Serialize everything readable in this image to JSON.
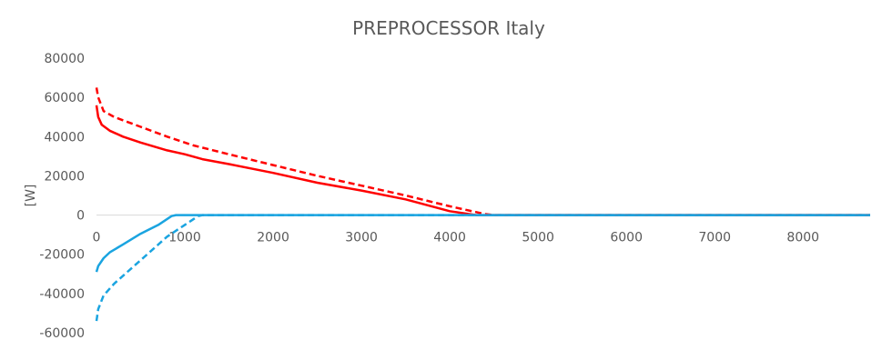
{
  "chart_data": {
    "type": "line",
    "title": "PREPROCESSOR Italy",
    "xlabel": "",
    "ylabel": "[W]",
    "xlim": [
      0,
      8760
    ],
    "ylim": [
      -60000,
      80000
    ],
    "x_ticks": [
      0,
      1000,
      2000,
      3000,
      4000,
      5000,
      6000,
      7000,
      8000
    ],
    "y_ticks": [
      80000,
      60000,
      40000,
      20000,
      0,
      -20000,
      -40000,
      -60000
    ],
    "grid": false,
    "legend": "none",
    "series": [
      {
        "color": "#ff0000",
        "dash": "solid",
        "points": [
          [
            0,
            56000
          ],
          [
            20,
            50000
          ],
          [
            60,
            46000
          ],
          [
            150,
            43000
          ],
          [
            300,
            40000
          ],
          [
            500,
            37000
          ],
          [
            800,
            33000
          ],
          [
            1000,
            31000
          ],
          [
            1200,
            28500
          ],
          [
            1500,
            26000
          ],
          [
            2000,
            21500
          ],
          [
            2500,
            16500
          ],
          [
            3000,
            12500
          ],
          [
            3500,
            8000
          ],
          [
            4000,
            2000
          ],
          [
            4300,
            0
          ],
          [
            8760,
            0
          ]
        ]
      },
      {
        "color": "#ff0000",
        "dash": "dashed",
        "points": [
          [
            0,
            65000
          ],
          [
            20,
            60000
          ],
          [
            80,
            53000
          ],
          [
            200,
            50000
          ],
          [
            500,
            45000
          ],
          [
            800,
            40000
          ],
          [
            1100,
            35500
          ],
          [
            1500,
            31000
          ],
          [
            2000,
            25500
          ],
          [
            2500,
            20000
          ],
          [
            3000,
            15000
          ],
          [
            3500,
            10000
          ],
          [
            4000,
            4500
          ],
          [
            4400,
            500
          ],
          [
            4500,
            0
          ],
          [
            8760,
            0
          ]
        ]
      },
      {
        "color": "#1aa4e0",
        "dash": "solid",
        "points": [
          [
            0,
            -29000
          ],
          [
            20,
            -26000
          ],
          [
            80,
            -22000
          ],
          [
            150,
            -19000
          ],
          [
            300,
            -15000
          ],
          [
            500,
            -9500
          ],
          [
            700,
            -5000
          ],
          [
            850,
            -500
          ],
          [
            900,
            0
          ],
          [
            8760,
            0
          ]
        ]
      },
      {
        "color": "#1aa4e0",
        "dash": "dashed",
        "points": [
          [
            0,
            -54000
          ],
          [
            20,
            -48000
          ],
          [
            80,
            -41000
          ],
          [
            200,
            -35000
          ],
          [
            400,
            -27000
          ],
          [
            600,
            -19000
          ],
          [
            800,
            -11000
          ],
          [
            1000,
            -5000
          ],
          [
            1150,
            -500
          ],
          [
            1200,
            0
          ],
          [
            8760,
            0
          ]
        ]
      }
    ]
  }
}
